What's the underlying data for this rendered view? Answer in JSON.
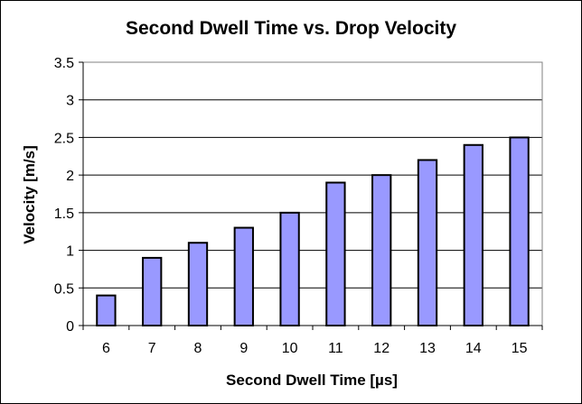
{
  "chart_data": {
    "type": "bar",
    "title": "Second Dwell Time vs. Drop Velocity",
    "xlabel": "Second Dwell Time [µs]",
    "ylabel": "Velocity [m/s]",
    "categories": [
      "6",
      "7",
      "8",
      "9",
      "10",
      "11",
      "12",
      "13",
      "14",
      "15"
    ],
    "values": [
      0.4,
      0.9,
      1.1,
      1.3,
      1.5,
      1.9,
      2.0,
      2.2,
      2.4,
      2.5
    ],
    "ylim": [
      0,
      3.5
    ],
    "yticks": [
      "0",
      "0.5",
      "1",
      "1.5",
      "2",
      "2.5",
      "3",
      "3.5"
    ],
    "grid": "horizontal",
    "legend": "none",
    "colors": {
      "bar_fill": "#9999ff",
      "bar_stroke": "#000000",
      "grid": "#000000",
      "plot_border": "#808080"
    }
  }
}
